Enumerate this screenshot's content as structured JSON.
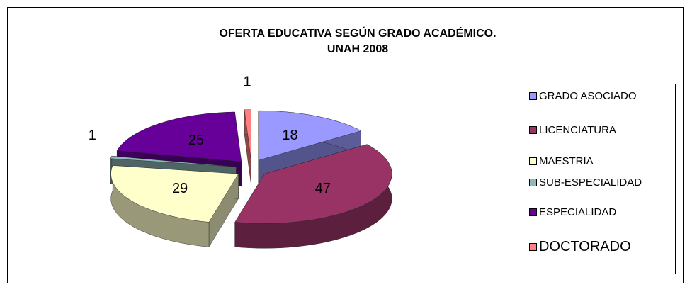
{
  "chart_data": {
    "type": "pie3d",
    "title": [
      "OFERTA EDUCATIVA SEGÚN GRADO ACADÉMICO.",
      "UNAH 2008"
    ],
    "categories": [
      "GRADO ASOCIADO",
      "LICENCIATURA",
      "MAESTRIA",
      "SUB-ESPECIALIDAD",
      "ESPECIALIDAD",
      "DOCTORADO"
    ],
    "values": [
      18,
      47,
      29,
      1,
      25,
      1
    ],
    "colors": [
      "#9999ff",
      "#993366",
      "#ffffcc",
      "#8fb8b8",
      "#660099",
      "#ff8080"
    ],
    "legend": "right"
  }
}
